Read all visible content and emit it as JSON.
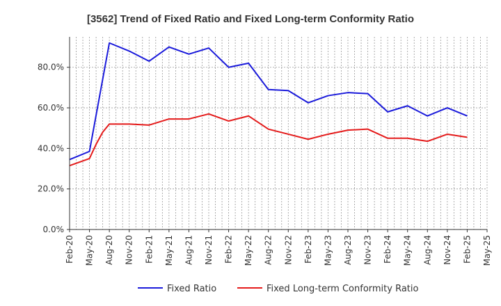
{
  "chart_data": {
    "type": "line",
    "title": "[3562]  Trend of Fixed Ratio and Fixed Long-term Conformity Ratio",
    "xlabel": "",
    "ylabel": "",
    "ylim": [
      0,
      95
    ],
    "yticks": [
      0,
      20,
      40,
      60,
      80
    ],
    "ytick_labels": [
      "0.0%",
      "20.0%",
      "40.0%",
      "60.0%",
      "80.0%"
    ],
    "x_tick_labels": [
      "Feb-20",
      "May-20",
      "Aug-20",
      "Nov-20",
      "Feb-21",
      "May-21",
      "Aug-21",
      "Nov-21",
      "Feb-22",
      "May-22",
      "Aug-22",
      "Nov-22",
      "Feb-23",
      "May-23",
      "Aug-23",
      "Nov-23",
      "Feb-24",
      "May-24",
      "Aug-24",
      "Nov-24",
      "Feb-25",
      "May-25"
    ],
    "grid": true,
    "legend_position": "bottom",
    "series": [
      {
        "name": "Fixed Ratio",
        "color": "#1a1adb",
        "x": [
          "Feb-20",
          "May-20",
          "Aug-20",
          "Nov-20",
          "Feb-21",
          "May-21",
          "Aug-21",
          "Nov-21",
          "Feb-22",
          "May-22",
          "Aug-22",
          "Nov-22",
          "Feb-23",
          "May-23",
          "Aug-23",
          "Nov-23",
          "Feb-24",
          "May-24",
          "Aug-24",
          "Nov-24",
          "Feb-25"
        ],
        "values": [
          34.5,
          38.5,
          92.0,
          88.0,
          83.0,
          90.0,
          86.5,
          89.5,
          80.0,
          82.0,
          69.0,
          68.5,
          62.5,
          66.0,
          67.5,
          67.0,
          58.0,
          61.0,
          56.0,
          60.0,
          56.0
        ]
      },
      {
        "name": "Fixed Long-term Conformity Ratio",
        "color": "#e41a1a",
        "x": [
          "Feb-20",
          "May-20",
          "Jun-20",
          "Jul-20",
          "Aug-20",
          "Nov-20",
          "Feb-21",
          "May-21",
          "Aug-21",
          "Nov-21",
          "Feb-22",
          "May-22",
          "Aug-22",
          "Nov-22",
          "Feb-23",
          "May-23",
          "Aug-23",
          "Nov-23",
          "Feb-24",
          "May-24",
          "Aug-24",
          "Nov-24",
          "Feb-25"
        ],
        "values": [
          31.5,
          35.0,
          42.0,
          48.0,
          52.0,
          52.0,
          51.5,
          54.5,
          54.5,
          57.0,
          53.5,
          56.0,
          49.5,
          47.0,
          44.5,
          47.0,
          49.0,
          49.5,
          45.0,
          45.0,
          43.5,
          47.0,
          45.5
        ]
      }
    ]
  }
}
